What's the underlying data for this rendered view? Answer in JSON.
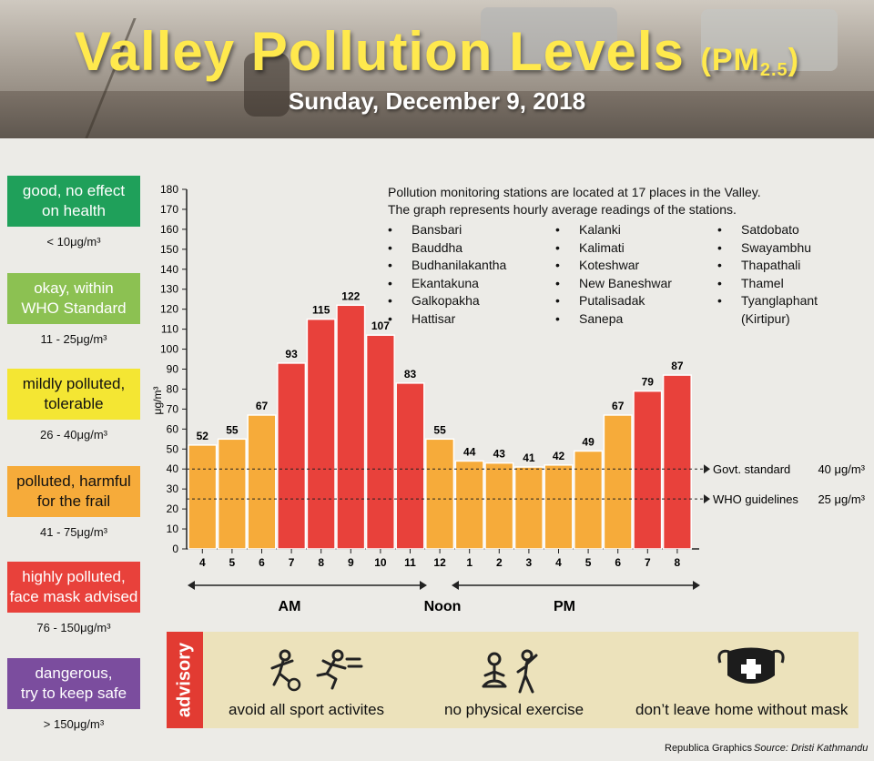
{
  "header": {
    "title": "Valley Pollution Levels",
    "unit_prefix": "(PM",
    "unit_sub": "2.5",
    "unit_suffix": ")",
    "date": "Sunday, December 9, 2018"
  },
  "legend": [
    {
      "label_line1": "good, no effect",
      "label_line2": "on health",
      "range": "< 10μg/m³",
      "color": "#1fa05a",
      "text_color": "#ffffff"
    },
    {
      "label_line1": "okay, within",
      "label_line2": "WHO Standard",
      "range": "11 - 25μg/m³",
      "color": "#8cc152",
      "text_color": "#ffffff"
    },
    {
      "label_line1": "mildly polluted,",
      "label_line2": "tolerable",
      "range": "26 - 40μg/m³",
      "color": "#f4e633",
      "text_color": "#111111"
    },
    {
      "label_line1": "polluted, harmful",
      "label_line2": "for the frail",
      "range": "41 - 75μg/m³",
      "color": "#f6ab3a",
      "text_color": "#111111"
    },
    {
      "label_line1": "highly polluted,",
      "label_line2": "face mask advised",
      "range": "76 - 150μg/m³",
      "color": "#e8413b",
      "text_color": "#ffffff"
    },
    {
      "label_line1": "dangerous,",
      "label_line2": "try to keep safe",
      "range": "> 150μg/m³",
      "color": "#7b4d9e",
      "text_color": "#ffffff"
    }
  ],
  "info": {
    "line1": "Pollution monitoring stations are located at 17 places in the Valley.",
    "line2": "The graph represents hourly average readings of the stations.",
    "stations_col1": [
      "Bansbari",
      "Bauddha",
      "Budhanilakantha",
      "Ekantakuna",
      "Galkopakha",
      "Hattisar"
    ],
    "stations_col2": [
      "Kalanki",
      "Kalimati",
      "Koteshwar",
      "New Baneshwar",
      "Putalisadak",
      "Sanepa"
    ],
    "stations_col3": [
      "Satdobato",
      "Swayambhu",
      "Thapathali",
      "Thamel",
      "Tyanglaphant"
    ],
    "stations_col3_extra": "(Kirtipur)"
  },
  "chart_data": {
    "type": "bar",
    "categories": [
      "4",
      "5",
      "6",
      "7",
      "8",
      "9",
      "10",
      "11",
      "12",
      "1",
      "2",
      "3",
      "4",
      "5",
      "6",
      "7",
      "8"
    ],
    "values": [
      52,
      55,
      67,
      93,
      115,
      122,
      107,
      83,
      55,
      44,
      43,
      41,
      42,
      49,
      67,
      79,
      87
    ],
    "ylabel": "μg/m³",
    "ylim": [
      0,
      180
    ],
    "ytick_step": 10,
    "colors": {
      "polluted": "#f6ab3a",
      "highly_polluted": "#e8413b"
    },
    "thresholds": [
      {
        "label": "Govt. standard",
        "value_label": "40 μg/m³",
        "value": 40
      },
      {
        "label": "WHO guidelines",
        "value_label": "25 μg/m³",
        "value": 25
      }
    ],
    "period_labels": {
      "am": "AM",
      "noon": "Noon",
      "pm": "PM"
    }
  },
  "advisory": {
    "tag": "advisory",
    "items": [
      {
        "label": "avoid all sport activites",
        "icon": "sports-icon"
      },
      {
        "label": "no physical exercise",
        "icon": "exercise-icon"
      },
      {
        "label": "don’t leave home without mask",
        "icon": "mask-icon"
      }
    ]
  },
  "footer": {
    "credit": "Republica Graphics",
    "source": "Source: Dristi Kathmandu"
  }
}
